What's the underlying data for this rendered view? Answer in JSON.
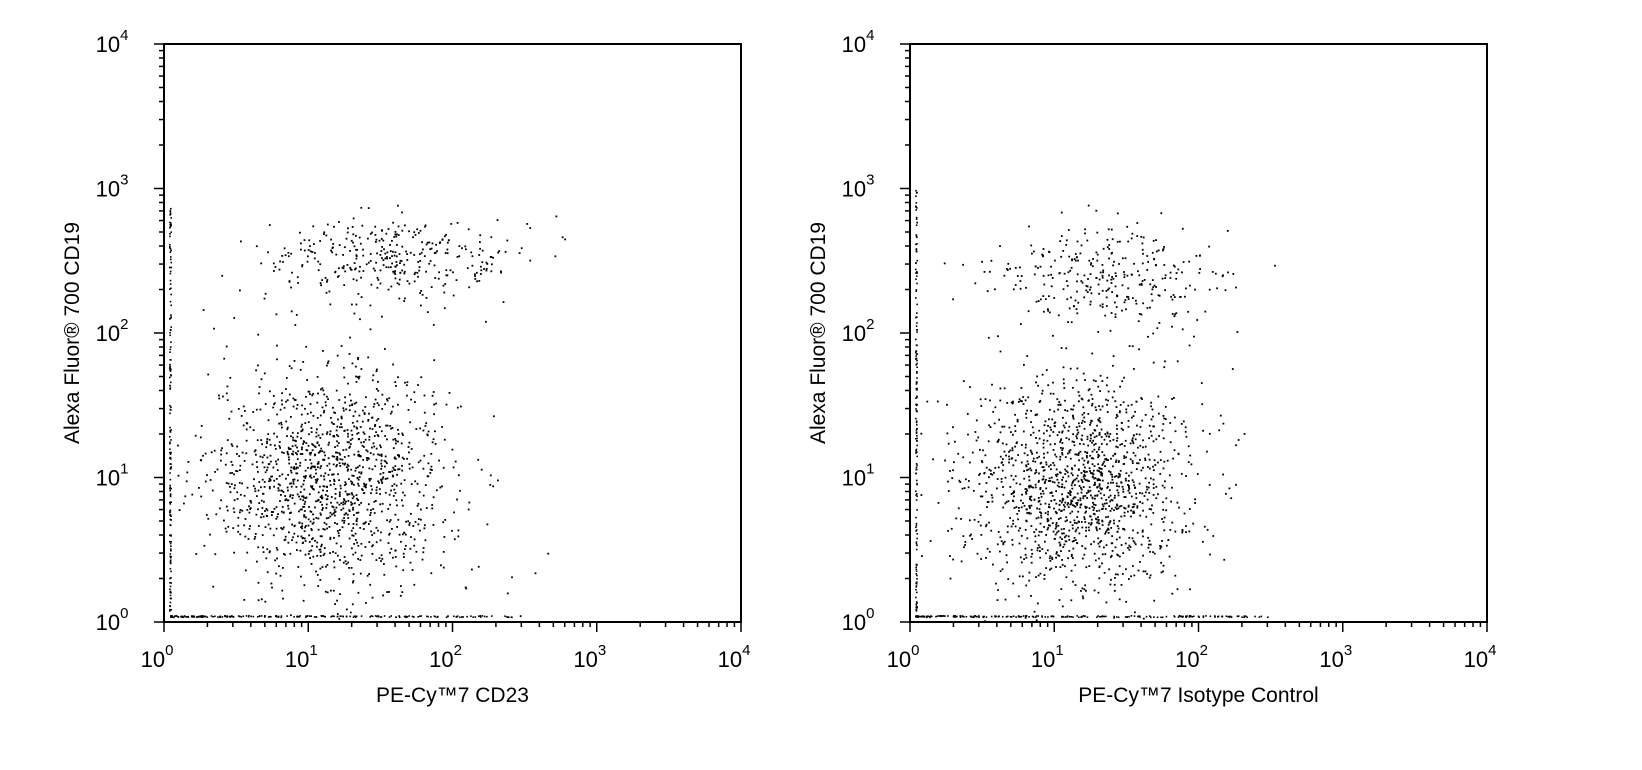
{
  "chart_data": [
    {
      "type": "scatter",
      "xlabel": "PE-Cy™7 CD23",
      "ylabel": "Alexa Fluor® 700 CD19",
      "xscale": "log",
      "yscale": "log",
      "xlim": [
        1,
        10000
      ],
      "ylim": [
        1,
        10000
      ],
      "xticks": [
        "10",
        "10",
        "10",
        "10",
        "10"
      ],
      "xtick_exponents": [
        "0",
        "1",
        "2",
        "3",
        "4"
      ],
      "yticks": [
        "10",
        "10",
        "10",
        "10",
        "10"
      ],
      "ytick_exponents": [
        "0",
        "1",
        "2",
        "3",
        "4"
      ],
      "grid": false,
      "point_color": "#000000",
      "populations": [
        {
          "center_x": 14,
          "center_y": 10,
          "spread_x": 0.42,
          "spread_y": 0.38,
          "count": 1400
        },
        {
          "center_x": 40,
          "center_y": 330,
          "spread_x": 0.45,
          "spread_y": 0.15,
          "count": 360
        }
      ],
      "axis_edge_events": {
        "y_axis_range": [
          1.1,
          800
        ],
        "x_axis_range": [
          1.1,
          300
        ]
      }
    },
    {
      "type": "scatter",
      "xlabel": "PE-Cy™7 Isotype Control",
      "ylabel": "Alexa Fluor® 700 CD19",
      "xscale": "log",
      "yscale": "log",
      "xlim": [
        1,
        10000
      ],
      "ylim": [
        1,
        10000
      ],
      "xticks": [
        "10",
        "10",
        "10",
        "10",
        "10"
      ],
      "xtick_exponents": [
        "0",
        "1",
        "2",
        "3",
        "4"
      ],
      "yticks": [
        "10",
        "10",
        "10",
        "10",
        "10"
      ],
      "ytick_exponents": [
        "0",
        "1",
        "2",
        "3",
        "4"
      ],
      "grid": false,
      "point_color": "#000000",
      "populations": [
        {
          "center_x": 14,
          "center_y": 9,
          "spread_x": 0.4,
          "spread_y": 0.38,
          "count": 1500
        },
        {
          "center_x": 22,
          "center_y": 260,
          "spread_x": 0.4,
          "spread_y": 0.17,
          "count": 320
        }
      ],
      "axis_edge_events": {
        "y_axis_range": [
          1.1,
          1000
        ],
        "x_axis_range": [
          1.1,
          300
        ]
      }
    }
  ]
}
